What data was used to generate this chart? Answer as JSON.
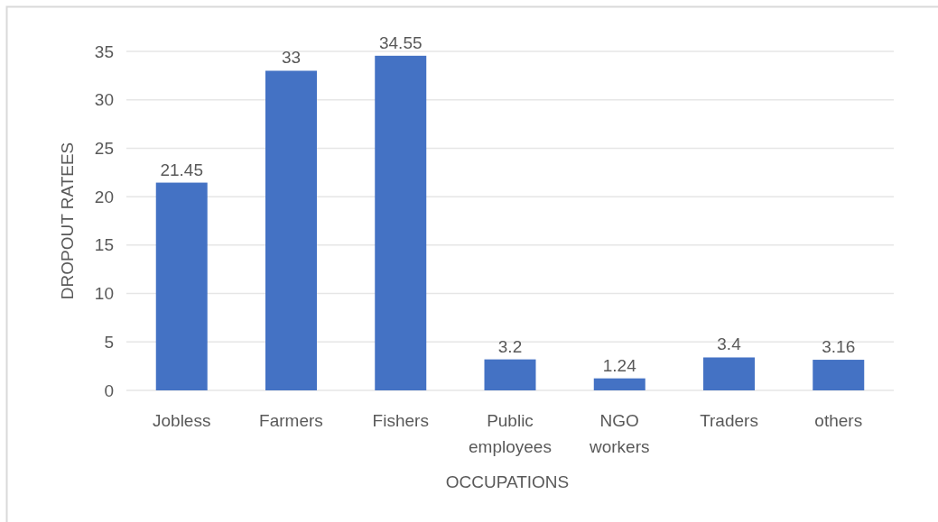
{
  "chart_data": {
    "type": "bar",
    "categories": [
      "Jobless",
      "Farmers",
      "Fishers",
      "Public employees",
      "NGO workers",
      "Traders",
      "others"
    ],
    "values": [
      21.45,
      33,
      34.55,
      3.2,
      1.24,
      3.4,
      3.16
    ],
    "color": "#4472c4",
    "xlabel": "OCCUPATIONS",
    "ylabel": "DROPOUT RATEES",
    "ylim": [
      0,
      35
    ],
    "yticks": [
      0,
      5,
      10,
      15,
      20,
      25,
      30,
      35
    ],
    "grid": "y",
    "data_labels": true
  }
}
